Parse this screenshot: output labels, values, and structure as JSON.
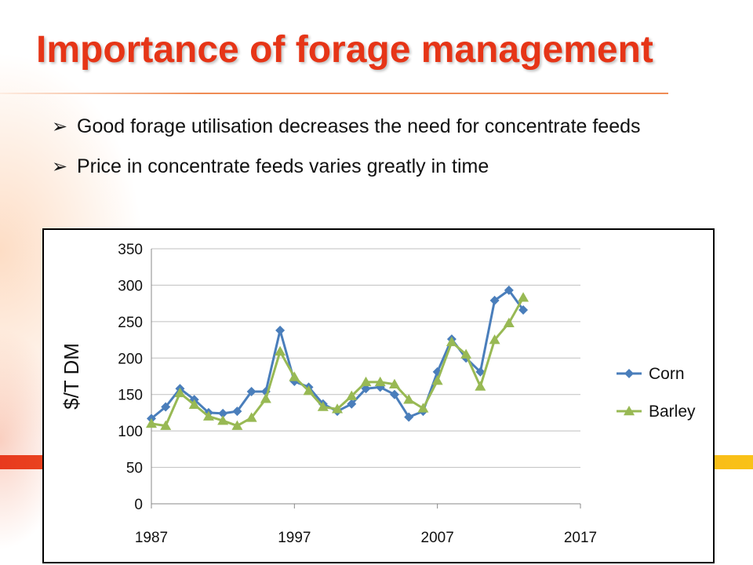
{
  "slide": {
    "title": "Importance of forage management",
    "bullets": [
      {
        "text": "Good forage utilisation decreases the need for concentrate feeds",
        "icon": "arrow-bullet-icon"
      },
      {
        "text": "Price in concentrate feeds varies greatly in time",
        "icon": "arrow-bullet-icon"
      }
    ],
    "colors": {
      "title": "#e63517",
      "band": "#f06a22"
    }
  },
  "chart_data": {
    "type": "line",
    "title": "",
    "xlabel": "",
    "ylabel": "$/T  DM",
    "xlim": [
      1987,
      2017
    ],
    "ylim": [
      0,
      350
    ],
    "x_ticks": [
      1987,
      1997,
      2007,
      2017
    ],
    "y_ticks": [
      0,
      50,
      100,
      150,
      200,
      250,
      300,
      350
    ],
    "grid": "horizontal",
    "legend_position": "right",
    "x": [
      1987,
      1988,
      1989,
      1990,
      1991,
      1992,
      1993,
      1994,
      1995,
      1996,
      1997,
      1998,
      1999,
      2000,
      2001,
      2002,
      2003,
      2004,
      2005,
      2006,
      2007,
      2008,
      2009,
      2010,
      2011,
      2012,
      2013
    ],
    "series": [
      {
        "name": "Corn",
        "color": "#4a7ebb",
        "marker": "diamond",
        "values": [
          117,
          133,
          158,
          143,
          125,
          124,
          127,
          154,
          154,
          238,
          168,
          160,
          137,
          127,
          137,
          158,
          160,
          150,
          119,
          127,
          181,
          226,
          200,
          181,
          279,
          293,
          266
        ]
      },
      {
        "name": "Barley",
        "color": "#98b954",
        "marker": "triangle",
        "values": [
          110,
          107,
          152,
          136,
          120,
          114,
          107,
          118,
          144,
          209,
          174,
          155,
          133,
          130,
          148,
          167,
          167,
          164,
          143,
          131,
          169,
          222,
          205,
          161,
          225,
          248,
          283
        ]
      }
    ]
  }
}
